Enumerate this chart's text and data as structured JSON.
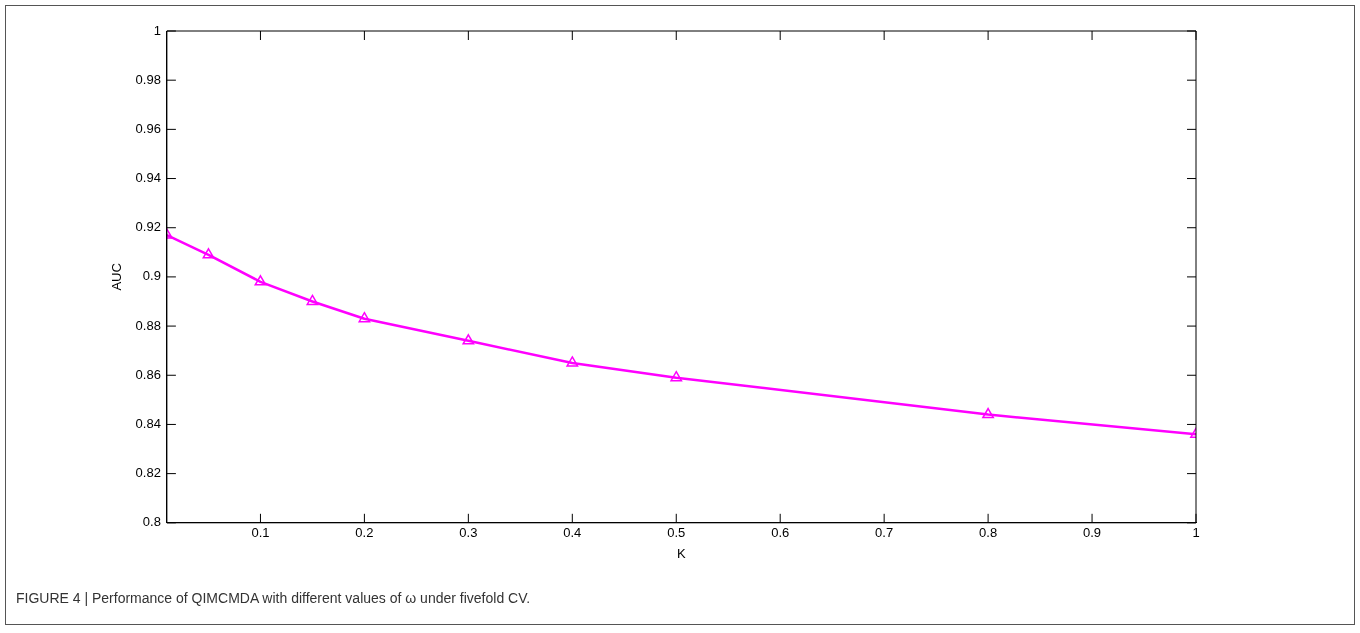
{
  "chart_data": {
    "type": "line",
    "xlabel": "K",
    "ylabel": "AUC",
    "x": [
      0.01,
      0.05,
      0.1,
      0.15,
      0.2,
      0.3,
      0.4,
      0.5,
      0.8,
      1
    ],
    "series": [
      {
        "color": "#ff00ff",
        "values": [
          0.917,
          0.909,
          0.898,
          0.89,
          0.883,
          0.874,
          0.865,
          0.859,
          0.844,
          0.836
        ]
      }
    ],
    "xlim": [
      0.01,
      1
    ],
    "xticks": [
      0.1,
      0.2,
      0.3,
      0.4,
      0.5,
      0.6,
      0.7,
      0.8,
      0.9,
      1
    ],
    "ylim": [
      0.8,
      1
    ],
    "yticks": [
      0.8,
      0.82,
      0.84,
      0.86,
      0.88,
      0.9,
      0.92,
      0.94,
      0.96,
      0.98,
      1
    ],
    "grid": false,
    "legend": false,
    "marker": "triangle",
    "line_style": "solid",
    "annotations": [
      "FIGURE 4 | Performance of QIMCMDA with different values of ω under fivefold CV."
    ]
  }
}
